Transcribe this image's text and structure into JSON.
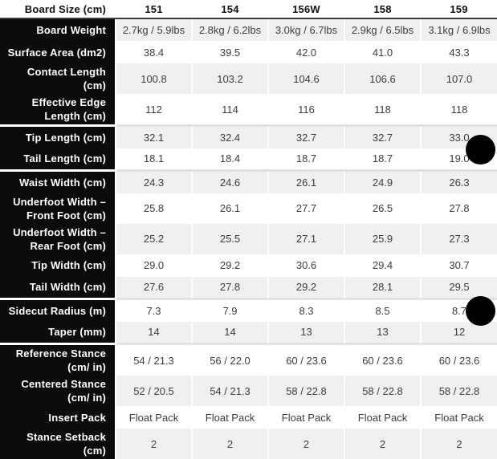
{
  "header": {
    "row_label": "Board Size (cm)",
    "columns": [
      "151",
      "154",
      "156W",
      "158",
      "159"
    ]
  },
  "rows": [
    {
      "label": "Board Weight",
      "values": [
        "2.7kg / 5.9lbs",
        "2.8kg / 6.2lbs",
        "3.0kg / 6.7lbs",
        "2.9kg / 6.5lbs",
        "3.1kg / 6.9lbs"
      ],
      "group_start": false
    },
    {
      "label": "Surface Area (dm2)",
      "values": [
        "38.4",
        "39.5",
        "42.0",
        "41.0",
        "43.3"
      ],
      "group_start": false
    },
    {
      "label": "Contact Length (cm)",
      "values": [
        "100.8",
        "103.2",
        "104.6",
        "106.6",
        "107.0"
      ],
      "group_start": false
    },
    {
      "label": "Effective Edge Length (cm)",
      "values": [
        "112",
        "114",
        "116",
        "118",
        "118"
      ],
      "group_start": false
    },
    {
      "label": "Tip Length (cm)",
      "values": [
        "32.1",
        "32.4",
        "32.7",
        "32.7",
        "33.0"
      ],
      "group_start": true
    },
    {
      "label": "Tail Length (cm)",
      "values": [
        "18.1",
        "18.4",
        "18.7",
        "18.7",
        "19.0"
      ],
      "group_start": false
    },
    {
      "label": "Waist Width (cm)",
      "values": [
        "24.3",
        "24.6",
        "26.1",
        "24.9",
        "26.3"
      ],
      "group_start": true
    },
    {
      "label": "Underfoot Width – Front Foot (cm)",
      "values": [
        "25.8",
        "26.1",
        "27.7",
        "26.5",
        "27.8"
      ],
      "group_start": false
    },
    {
      "label": "Underfoot Width – Rear Foot (cm)",
      "values": [
        "25.2",
        "25.5",
        "27.1",
        "25.9",
        "27.3"
      ],
      "group_start": false
    },
    {
      "label": "Tip Width (cm)",
      "values": [
        "29.0",
        "29.2",
        "30.6",
        "29.4",
        "30.7"
      ],
      "group_start": false
    },
    {
      "label": "Tail Width (cm)",
      "values": [
        "27.6",
        "27.8",
        "29.2",
        "28.1",
        "29.5"
      ],
      "group_start": false
    },
    {
      "label": "Sidecut Radius (m)",
      "values": [
        "7.3",
        "7.9",
        "8.3",
        "8.5",
        "8.7"
      ],
      "group_start": true
    },
    {
      "label": "Taper (mm)",
      "values": [
        "14",
        "14",
        "13",
        "13",
        "12"
      ],
      "group_start": false
    },
    {
      "label": "Reference Stance (cm/ in)",
      "values": [
        "54 / 21.3",
        "56 / 22.0",
        "60 / 23.6",
        "60 / 23.6",
        "60 / 23.6"
      ],
      "group_start": true
    },
    {
      "label": "Centered Stance (cm/ in)",
      "values": [
        "52 / 20.5",
        "54 / 21.3",
        "58 / 22.8",
        "58 / 22.8",
        "58 / 22.8"
      ],
      "group_start": false
    },
    {
      "label": "Insert Pack",
      "values": [
        "Float Pack",
        "Float Pack",
        "Float Pack",
        "Float Pack",
        "Float Pack"
      ],
      "group_start": false
    },
    {
      "label": "Stance Setback (cm)",
      "values": [
        "2",
        "2",
        "2",
        "2",
        "2"
      ],
      "group_start": false
    }
  ],
  "colors": {
    "label_column_bg": "#0b0b0b",
    "stripe": "#f0f0f0",
    "header_border": "#3a3a3a",
    "data_text": "#3d3d3d",
    "group_line": "#e2e2e2",
    "widget": "#000000"
  }
}
